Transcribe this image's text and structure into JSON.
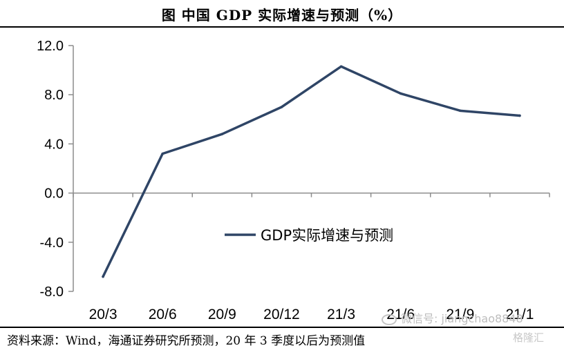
{
  "title": "图 中国 GDP 实际增速与预测（%）",
  "source": "资料来源：Wind，海通证券研究所预测，20 年 3 季度以后为预测值",
  "watermark": {
    "text": "微信号: jiangchao8848",
    "logo": "格隆汇"
  },
  "colors": {
    "line": "#2f4566",
    "axis": "#8c8c8c",
    "text": "#000000"
  },
  "chart_data": {
    "type": "line",
    "categories": [
      "20/3",
      "20/6",
      "20/9",
      "20/12",
      "21/3",
      "21/6",
      "21/9",
      "21/1"
    ],
    "series": [
      {
        "name": "GDP实际增速与预测",
        "values": [
          -6.8,
          3.2,
          4.8,
          7.0,
          10.3,
          8.1,
          6.7,
          6.3
        ]
      }
    ],
    "yticks": [
      "12.0",
      "8.0",
      "4.0",
      "0.0",
      "-4.0",
      "-8.0"
    ],
    "ylim": [
      -8,
      12
    ],
    "grid": false,
    "legend_position": "center-right",
    "xlabel": "",
    "ylabel": ""
  }
}
